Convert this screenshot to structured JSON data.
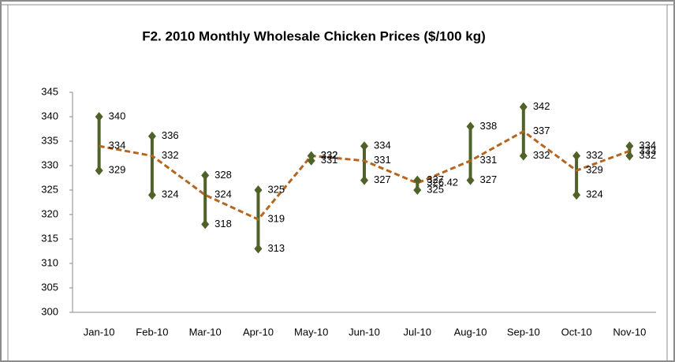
{
  "chart_data": {
    "type": "hilo",
    "title": "F2. 2010 Monthly Wholesale Chicken Prices ($/100 kg)",
    "categories": [
      "Jan-10",
      "Feb-10",
      "Mar-10",
      "Apr-10",
      "May-10",
      "Jun-10",
      "Jul-10",
      "Aug-10",
      "Sep-10",
      "Oct-10",
      "Nov-10"
    ],
    "series": [
      {
        "color": "#4f6228",
        "marker": "diamond",
        "values": [
          340,
          336,
          328,
          325,
          332,
          334,
          327,
          338,
          342,
          332,
          334
        ]
      },
      {
        "color": "#4f6228",
        "marker": "diamond",
        "values": [
          329,
          324,
          318,
          313,
          331,
          327,
          325,
          327,
          332,
          324,
          332
        ]
      },
      {
        "color": "#b5651d",
        "line": "dashed",
        "values": [
          334,
          332,
          324,
          319,
          332,
          331,
          326.42,
          331,
          337,
          329,
          333
        ]
      }
    ],
    "ylim": [
      300,
      345
    ],
    "yticks": [
      300,
      305,
      310,
      315,
      320,
      325,
      330,
      335,
      340,
      345
    ],
    "grid": false
  }
}
